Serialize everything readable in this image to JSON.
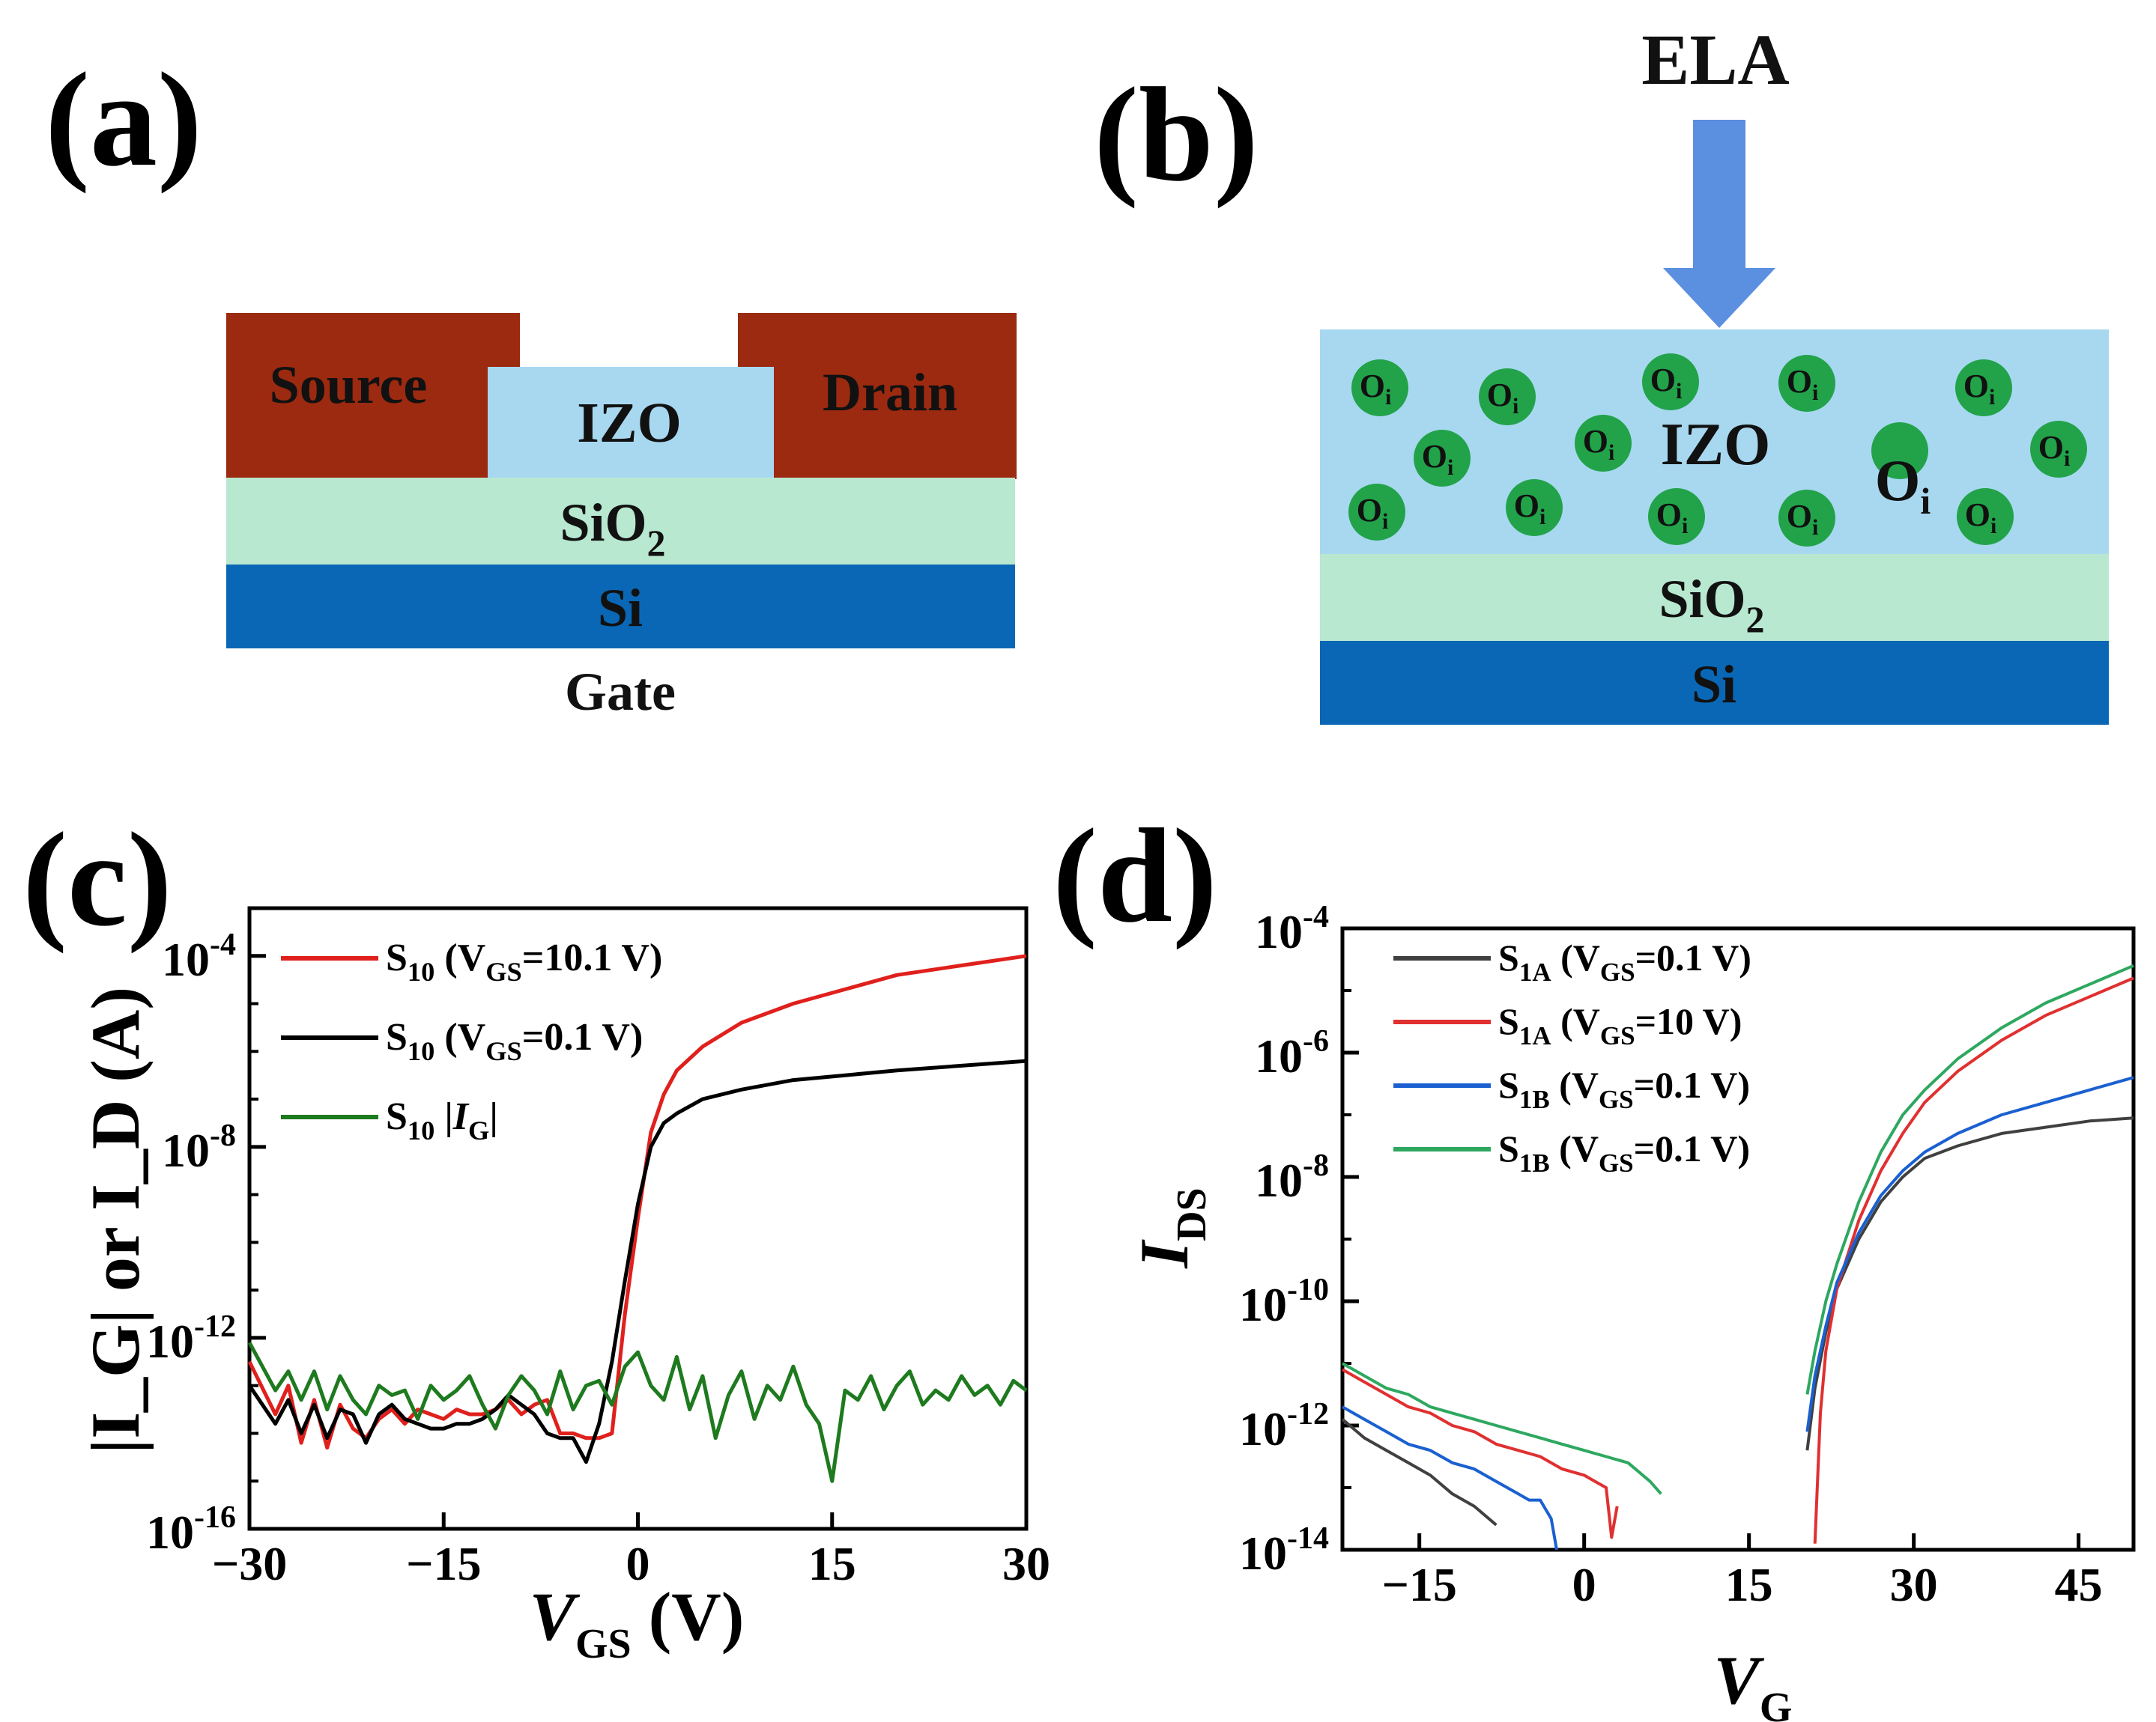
{
  "panels": {
    "a": {
      "letter": "(a)",
      "source": "Source",
      "drain": "Drain",
      "channel": "IZO",
      "dielectric": "SiO",
      "dielectric_sub": "2",
      "substrate": "Si",
      "gate": "Gate"
    },
    "b": {
      "letter": "(b)",
      "arrow_label": "ELA",
      "channel": "IZO",
      "dielectric": "SiO",
      "dielectric_sub": "2",
      "substrate": "Si",
      "defect": "O",
      "defect_sub": "i"
    },
    "c": {
      "letter": "(c)"
    },
    "d": {
      "letter": "(d)"
    }
  },
  "colors": {
    "source_drain": "#9b2a10",
    "izo": "#a8d8f0",
    "sio2": "#b8e8d0",
    "si": "#0a67b5",
    "oi": "#22a34a",
    "arrow": "#5b8fe0"
  },
  "chart_data": [
    {
      "id": "c",
      "type": "line",
      "xlabel": "V",
      "xlabel_sub": "GS",
      "xlabel_unit": " (V)",
      "ylabel": "|I_G| or I_D (A)",
      "xlim": [
        -30,
        30
      ],
      "ylim_log10": [
        -16,
        -3
      ],
      "xticks": [
        -30,
        -15,
        0,
        15,
        30
      ],
      "xtick_labels": [
        "−30",
        "−15",
        "0",
        "15",
        "30"
      ],
      "yticks_log10": [
        -4,
        -8,
        -12,
        -16
      ],
      "ytick_labels": [
        "-4",
        "-8",
        "-12",
        "-16"
      ],
      "ytick_base": "10",
      "legend_position": "top-left",
      "series": [
        {
          "name": "S",
          "name_sub": "10",
          "legend_text": " (V",
          "legend_sub2": "GS",
          "legend_tail": "=10.1 V)",
          "color": "#e0201c",
          "x": [
            -30,
            -28,
            -27,
            -26,
            -25,
            -24,
            -23,
            -22,
            -21,
            -20,
            -19,
            -18,
            -17,
            -16,
            -15,
            -14,
            -13,
            -12,
            -11,
            -10,
            -9,
            -8,
            -7,
            -6,
            -5,
            -4,
            -3,
            -2,
            -1,
            0,
            1,
            2,
            3,
            5,
            8,
            12,
            16,
            20,
            25,
            30
          ],
          "log10": [
            -12.5,
            -13.6,
            -13.0,
            -14.2,
            -13.3,
            -14.3,
            -13.4,
            -13.9,
            -14.1,
            -13.7,
            -13.5,
            -13.8,
            -13.5,
            -13.6,
            -13.7,
            -13.5,
            -13.6,
            -13.6,
            -13.5,
            -13.3,
            -13.6,
            -13.4,
            -13.3,
            -14.0,
            -14.0,
            -14.1,
            -14.1,
            -14.0,
            -11.5,
            -9.5,
            -7.7,
            -6.9,
            -6.4,
            -5.9,
            -5.4,
            -5.0,
            -4.7,
            -4.4,
            -4.2,
            -4.0
          ]
        },
        {
          "name": "S",
          "name_sub": "10",
          "legend_text": " (V",
          "legend_sub2": "GS",
          "legend_tail": "=0.1 V)",
          "color": "#000000",
          "x": [
            -30,
            -28,
            -27,
            -26,
            -25,
            -24,
            -23,
            -22,
            -21,
            -20,
            -19,
            -18,
            -17,
            -16,
            -15,
            -14,
            -13,
            -12,
            -11,
            -10,
            -9,
            -8,
            -7,
            -6,
            -5,
            -4,
            -3,
            -2,
            -1,
            0,
            1,
            2,
            3,
            5,
            8,
            12,
            16,
            20,
            25,
            30
          ],
          "log10": [
            -13.0,
            -13.8,
            -13.3,
            -14.0,
            -13.4,
            -14.1,
            -13.5,
            -13.6,
            -14.2,
            -13.6,
            -13.4,
            -13.7,
            -13.8,
            -13.9,
            -13.9,
            -13.8,
            -13.8,
            -13.7,
            -13.5,
            -13.2,
            -13.4,
            -13.6,
            -14.0,
            -14.1,
            -14.1,
            -14.6,
            -13.8,
            -12.5,
            -10.8,
            -9.2,
            -8.0,
            -7.5,
            -7.3,
            -7.0,
            -6.8,
            -6.6,
            -6.5,
            -6.4,
            -6.3,
            -6.2
          ]
        },
        {
          "name": "S",
          "name_sub": "10",
          "legend_text": "  |",
          "legend_italic": "I",
          "legend_sub2": "G",
          "legend_tail": "|",
          "color": "#1e7a1e",
          "x": [
            -30,
            -29,
            -28,
            -27,
            -26,
            -25,
            -24,
            -23,
            -22,
            -21,
            -20,
            -19,
            -18,
            -17,
            -16,
            -15,
            -14,
            -13,
            -12,
            -11,
            -10,
            -9,
            -8,
            -7,
            -6,
            -5,
            -4,
            -3,
            -2,
            -1,
            0,
            1,
            2,
            3,
            4,
            5,
            6,
            7,
            8,
            9,
            10,
            11,
            12,
            13,
            14,
            15,
            16,
            17,
            18,
            19,
            20,
            21,
            22,
            23,
            24,
            25,
            26,
            27,
            28,
            29,
            30
          ],
          "log10": [
            -12.1,
            -12.6,
            -13.1,
            -12.7,
            -13.3,
            -12.7,
            -13.5,
            -12.8,
            -13.3,
            -13.6,
            -13.0,
            -13.2,
            -13.1,
            -13.7,
            -13.0,
            -13.3,
            -13.1,
            -12.8,
            -13.4,
            -13.9,
            -13.2,
            -12.8,
            -13.1,
            -13.6,
            -12.7,
            -13.5,
            -13.0,
            -12.9,
            -13.4,
            -12.6,
            -12.3,
            -13.0,
            -13.3,
            -12.4,
            -13.5,
            -12.8,
            -14.1,
            -13.2,
            -12.7,
            -13.7,
            -13.0,
            -13.3,
            -12.6,
            -13.4,
            -13.8,
            -15.0,
            -13.1,
            -13.3,
            -12.8,
            -13.5,
            -13.0,
            -12.7,
            -13.4,
            -13.1,
            -13.3,
            -12.8,
            -13.2,
            -13.0,
            -13.4,
            -12.9,
            -13.1
          ]
        }
      ]
    },
    {
      "id": "d",
      "type": "line",
      "xlabel": "V",
      "xlabel_sub": "G",
      "ylabel": "I",
      "ylabel_sub": "DS",
      "xlim": [
        -22,
        50
      ],
      "ylim_log10": [
        -14,
        -4
      ],
      "xticks": [
        -15,
        0,
        15,
        30,
        45
      ],
      "xtick_labels": [
        "−15",
        "0",
        "15",
        "30",
        "45"
      ],
      "yticks_log10": [
        -4,
        -6,
        -8,
        -10,
        -12,
        -14
      ],
      "ytick_labels": [
        "-4",
        "-6",
        "-8",
        "-10",
        "-12",
        "-14"
      ],
      "ytick_base": "10",
      "legend_position": "top-left",
      "series": [
        {
          "name": "S",
          "name_sub": "1A",
          "legend_text": " (V",
          "legend_sub2": "GS",
          "legend_tail": "=0.1 V)",
          "color": "#404040",
          "segments": [
            {
              "x": [
                -22,
                -20,
                -18,
                -16,
                -14,
                -12,
                -10,
                -8
              ],
              "log10": [
                -11.9,
                -12.2,
                -12.4,
                -12.6,
                -12.8,
                -13.1,
                -13.3,
                -13.6
              ]
            },
            {
              "x": [
                20.3,
                21,
                22,
                23,
                25,
                27,
                29,
                31,
                34,
                38,
                42,
                46,
                50
              ],
              "log10": [
                -12.4,
                -11.4,
                -10.5,
                -9.8,
                -9.0,
                -8.4,
                -8.0,
                -7.7,
                -7.5,
                -7.3,
                -7.2,
                -7.1,
                -7.05
              ]
            }
          ]
        },
        {
          "name": "S",
          "name_sub": "1A",
          "legend_text": " (V",
          "legend_sub2": "GS",
          "legend_tail": "=10 V)",
          "color": "#e03030",
          "segments": [
            {
              "x": [
                -22,
                -20,
                -18,
                -16,
                -14,
                -12,
                -10,
                -8,
                -6,
                -4,
                -2,
                0,
                1,
                2,
                2.5,
                3
              ],
              "log10": [
                -11.1,
                -11.3,
                -11.5,
                -11.7,
                -11.8,
                -12.0,
                -12.1,
                -12.3,
                -12.4,
                -12.5,
                -12.7,
                -12.8,
                -12.9,
                -13.0,
                -13.8,
                -13.3
              ]
            },
            {
              "x": [
                21,
                21.5,
                22,
                23,
                25,
                27,
                29,
                31,
                34,
                38,
                42,
                46,
                50
              ],
              "log10": [
                -13.9,
                -11.8,
                -10.8,
                -9.8,
                -8.7,
                -7.9,
                -7.3,
                -6.8,
                -6.3,
                -5.8,
                -5.4,
                -5.1,
                -4.8
              ]
            }
          ]
        },
        {
          "name": "S",
          "name_sub": "1B",
          "legend_text": " (V",
          "legend_sub2": "GS",
          "legend_tail": "=0.1 V)",
          "color": "#1a60d0",
          "segments": [
            {
              "x": [
                -22,
                -20,
                -18,
                -16,
                -14,
                -12,
                -10,
                -8,
                -6,
                -5,
                -4,
                -3,
                -2.5
              ],
              "log10": [
                -11.7,
                -11.9,
                -12.1,
                -12.3,
                -12.4,
                -12.6,
                -12.7,
                -12.9,
                -13.1,
                -13.2,
                -13.2,
                -13.5,
                -14.0
              ]
            },
            {
              "x": [
                20.3,
                21,
                22,
                23,
                25,
                27,
                29,
                31,
                34,
                38,
                42,
                46,
                50
              ],
              "log10": [
                -12.1,
                -11.2,
                -10.4,
                -9.7,
                -8.9,
                -8.3,
                -7.9,
                -7.6,
                -7.3,
                -7.0,
                -6.8,
                -6.6,
                -6.4
              ]
            }
          ]
        },
        {
          "name": "S",
          "name_sub": "1B",
          "legend_text": " (V",
          "legend_sub2": "GS",
          "legend_tail": "=0.1 V)",
          "color": "#2ea860",
          "segments": [
            {
              "x": [
                -22,
                -20,
                -18,
                -16,
                -14,
                -12,
                -10,
                -8,
                -6,
                -4,
                -2,
                0,
                2,
                4,
                6,
                7
              ],
              "log10": [
                -11.0,
                -11.2,
                -11.4,
                -11.5,
                -11.7,
                -11.8,
                -11.9,
                -12.0,
                -12.1,
                -12.2,
                -12.3,
                -12.4,
                -12.5,
                -12.6,
                -12.9,
                -13.1
              ]
            },
            {
              "x": [
                20.3,
                21,
                22,
                23,
                25,
                27,
                29,
                31,
                34,
                38,
                42,
                46,
                50
              ],
              "log10": [
                -11.5,
                -10.8,
                -10.0,
                -9.4,
                -8.4,
                -7.6,
                -7.0,
                -6.6,
                -6.1,
                -5.6,
                -5.2,
                -4.9,
                -4.6
              ]
            }
          ]
        }
      ]
    }
  ]
}
